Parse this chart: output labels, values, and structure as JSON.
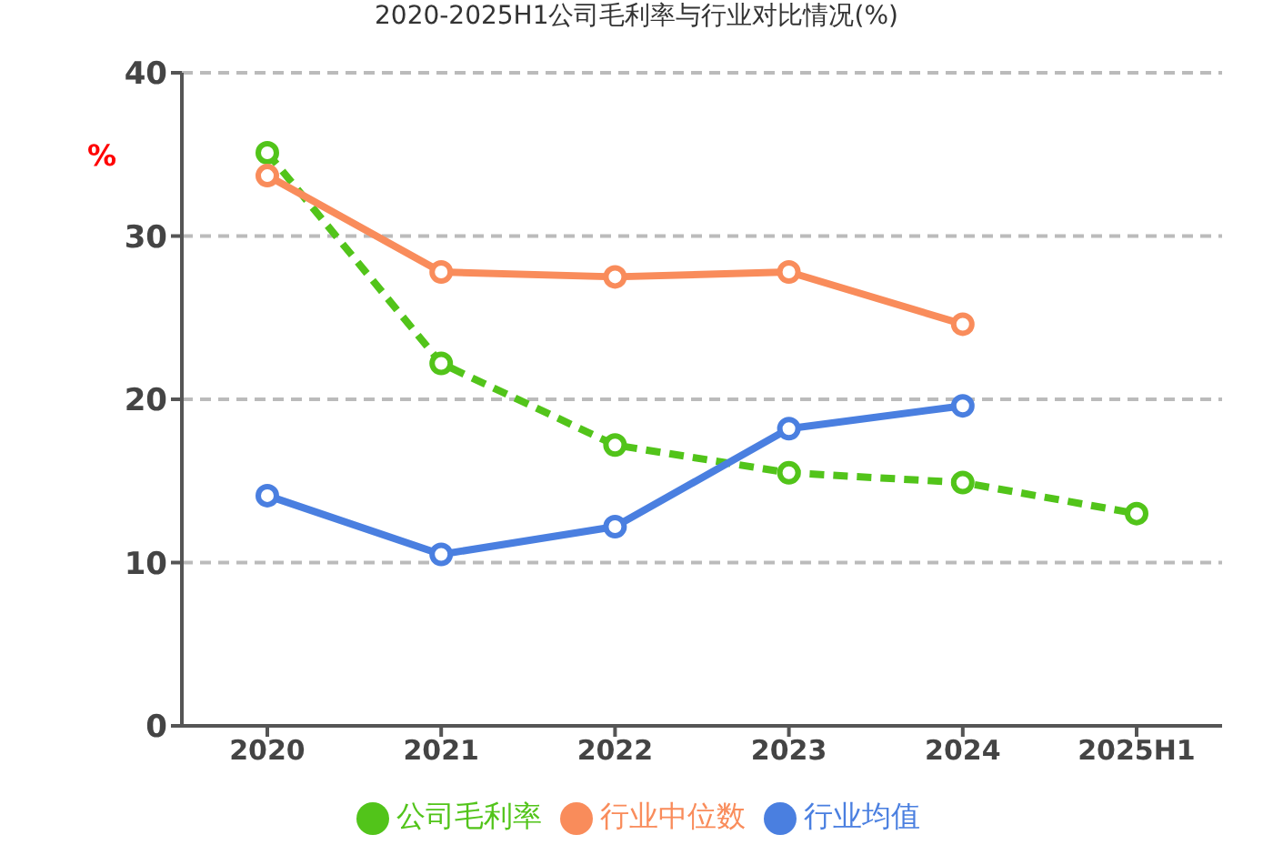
{
  "chart_data": {
    "type": "line",
    "title": "2020-2025H1公司毛利率与行业对比情况(%)",
    "ylabel": "%",
    "categories": [
      "2020",
      "2021",
      "2022",
      "2023",
      "2024",
      "2025H1"
    ],
    "series": [
      {
        "name": "公司毛利率",
        "color": "#52c41a",
        "line_style": "dashed",
        "values": [
          35.1,
          22.2,
          17.2,
          15.5,
          14.9,
          13.0
        ]
      },
      {
        "name": "行业均值",
        "color": "#4a7fe0",
        "values": [
          14.1,
          10.5,
          12.2,
          18.2,
          19.6,
          null
        ]
      },
      {
        "name": "行业中位数",
        "color": "#f98c5b",
        "values": [
          33.7,
          27.8,
          27.5,
          27.8,
          24.6,
          null
        ]
      }
    ],
    "ylim": [
      0,
      40
    ],
    "yticks": [
      0,
      10,
      20,
      30,
      40
    ],
    "grid": "y",
    "legend": "bottom",
    "marker": "circle"
  }
}
